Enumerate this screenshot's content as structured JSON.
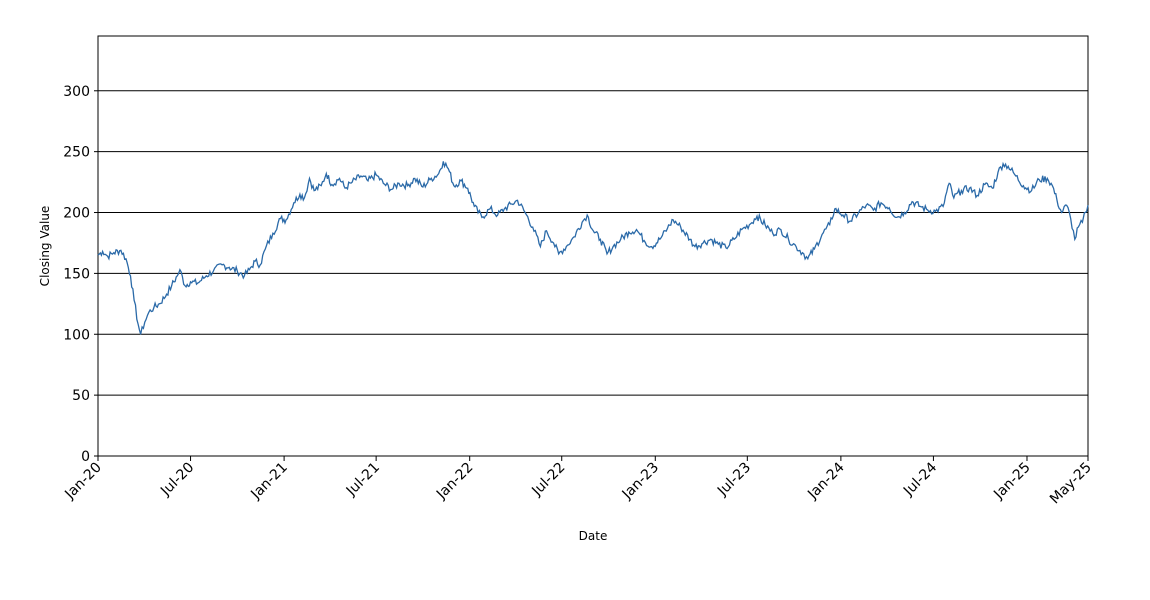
{
  "chart_data": {
    "type": "line",
    "title": "",
    "xlabel": "Date",
    "ylabel": "Closing Value",
    "xlim": [
      "2020-01-01",
      "2025-05-01"
    ],
    "ylim": [
      0,
      345
    ],
    "grid": "horizontal",
    "legend": "none",
    "line_color": "#2b6aa8",
    "y_ticks": [
      0,
      50,
      100,
      150,
      200,
      250,
      300
    ],
    "x_ticks": [
      {
        "date": "2020-01-01",
        "label": "Jan-20"
      },
      {
        "date": "2020-07-01",
        "label": "Jul-20"
      },
      {
        "date": "2021-01-01",
        "label": "Jan-21"
      },
      {
        "date": "2021-07-01",
        "label": "Jul-21"
      },
      {
        "date": "2022-01-01",
        "label": "Jan-22"
      },
      {
        "date": "2022-07-01",
        "label": "Jul-22"
      },
      {
        "date": "2023-01-01",
        "label": "Jan-23"
      },
      {
        "date": "2023-07-01",
        "label": "Jul-23"
      },
      {
        "date": "2024-01-01",
        "label": "Jan-24"
      },
      {
        "date": "2024-07-01",
        "label": "Jul-24"
      },
      {
        "date": "2025-01-01",
        "label": "Jan-25"
      },
      {
        "date": "2025-05-01",
        "label": "May-25"
      }
    ],
    "series": [
      {
        "values": [
          [
            "2020-01-01",
            165
          ],
          [
            "2020-01-10",
            168
          ],
          [
            "2020-01-20",
            164
          ],
          [
            "2020-02-01",
            167
          ],
          [
            "2020-02-15",
            169
          ],
          [
            "2020-02-25",
            162
          ],
          [
            "2020-03-05",
            148
          ],
          [
            "2020-03-12",
            128
          ],
          [
            "2020-03-20",
            108
          ],
          [
            "2020-03-25",
            100
          ],
          [
            "2020-04-02",
            110
          ],
          [
            "2020-04-10",
            118
          ],
          [
            "2020-04-20",
            122
          ],
          [
            "2020-05-01",
            125
          ],
          [
            "2020-05-15",
            133
          ],
          [
            "2020-05-25",
            140
          ],
          [
            "2020-06-05",
            148
          ],
          [
            "2020-06-10",
            153
          ],
          [
            "2020-06-20",
            140
          ],
          [
            "2020-07-01",
            143
          ],
          [
            "2020-07-15",
            142
          ],
          [
            "2020-08-01",
            148
          ],
          [
            "2020-08-15",
            152
          ],
          [
            "2020-09-01",
            157
          ],
          [
            "2020-09-15",
            155
          ],
          [
            "2020-10-01",
            152
          ],
          [
            "2020-10-15",
            148
          ],
          [
            "2020-10-25",
            153
          ],
          [
            "2020-11-05",
            160
          ],
          [
            "2020-11-15",
            157
          ],
          [
            "2020-11-25",
            170
          ],
          [
            "2020-12-10",
            183
          ],
          [
            "2020-12-25",
            195
          ],
          [
            "2021-01-05",
            194
          ],
          [
            "2021-01-20",
            208
          ],
          [
            "2021-02-01",
            215
          ],
          [
            "2021-02-10",
            212
          ],
          [
            "2021-02-20",
            228
          ],
          [
            "2021-03-01",
            218
          ],
          [
            "2021-03-15",
            222
          ],
          [
            "2021-03-25",
            232
          ],
          [
            "2021-04-05",
            223
          ],
          [
            "2021-04-20",
            228
          ],
          [
            "2021-05-01",
            220
          ],
          [
            "2021-05-15",
            225
          ],
          [
            "2021-06-01",
            230
          ],
          [
            "2021-06-15",
            226
          ],
          [
            "2021-07-01",
            231
          ],
          [
            "2021-07-15",
            224
          ],
          [
            "2021-08-01",
            219
          ],
          [
            "2021-08-15",
            224
          ],
          [
            "2021-09-01",
            222
          ],
          [
            "2021-09-15",
            228
          ],
          [
            "2021-10-01",
            221
          ],
          [
            "2021-10-15",
            227
          ],
          [
            "2021-11-01",
            232
          ],
          [
            "2021-11-10",
            242
          ],
          [
            "2021-11-20",
            236
          ],
          [
            "2021-12-01",
            222
          ],
          [
            "2021-12-15",
            226
          ],
          [
            "2021-12-28",
            220
          ],
          [
            "2022-01-10",
            205
          ],
          [
            "2022-01-25",
            196
          ],
          [
            "2022-02-10",
            203
          ],
          [
            "2022-02-25",
            198
          ],
          [
            "2022-03-10",
            203
          ],
          [
            "2022-03-25",
            207
          ],
          [
            "2022-04-05",
            210
          ],
          [
            "2022-04-20",
            200
          ],
          [
            "2022-05-05",
            188
          ],
          [
            "2022-05-20",
            172
          ],
          [
            "2022-06-01",
            185
          ],
          [
            "2022-06-15",
            175
          ],
          [
            "2022-06-25",
            166
          ],
          [
            "2022-07-10",
            172
          ],
          [
            "2022-07-25",
            180
          ],
          [
            "2022-08-10",
            192
          ],
          [
            "2022-08-20",
            198
          ],
          [
            "2022-09-01",
            185
          ],
          [
            "2022-09-15",
            178
          ],
          [
            "2022-09-28",
            166
          ],
          [
            "2022-10-10",
            172
          ],
          [
            "2022-10-25",
            178
          ],
          [
            "2022-11-10",
            184
          ],
          [
            "2022-11-25",
            186
          ],
          [
            "2022-12-10",
            177
          ],
          [
            "2022-12-25",
            172
          ],
          [
            "2023-01-10",
            178
          ],
          [
            "2023-01-25",
            187
          ],
          [
            "2023-02-05",
            194
          ],
          [
            "2023-02-20",
            188
          ],
          [
            "2023-03-10",
            178
          ],
          [
            "2023-03-20",
            172
          ],
          [
            "2023-04-05",
            175
          ],
          [
            "2023-04-20",
            178
          ],
          [
            "2023-05-05",
            174
          ],
          [
            "2023-05-20",
            171
          ],
          [
            "2023-06-05",
            178
          ],
          [
            "2023-06-20",
            186
          ],
          [
            "2023-07-05",
            190
          ],
          [
            "2023-07-20",
            197
          ],
          [
            "2023-08-05",
            190
          ],
          [
            "2023-08-20",
            183
          ],
          [
            "2023-09-05",
            186
          ],
          [
            "2023-09-20",
            178
          ],
          [
            "2023-10-05",
            172
          ],
          [
            "2023-10-20",
            166
          ],
          [
            "2023-10-28",
            162
          ],
          [
            "2023-11-10",
            170
          ],
          [
            "2023-11-25",
            182
          ],
          [
            "2023-12-10",
            190
          ],
          [
            "2023-12-20",
            203
          ],
          [
            "2024-01-05",
            198
          ],
          [
            "2024-01-20",
            193
          ],
          [
            "2024-02-05",
            200
          ],
          [
            "2024-02-20",
            206
          ],
          [
            "2024-03-05",
            202
          ],
          [
            "2024-03-20",
            208
          ],
          [
            "2024-04-05",
            204
          ],
          [
            "2024-04-20",
            196
          ],
          [
            "2024-05-05",
            200
          ],
          [
            "2024-05-20",
            209
          ],
          [
            "2024-06-05",
            205
          ],
          [
            "2024-06-20",
            202
          ],
          [
            "2024-07-05",
            201
          ],
          [
            "2024-07-20",
            205
          ],
          [
            "2024-08-01",
            224
          ],
          [
            "2024-08-10",
            212
          ],
          [
            "2024-08-25",
            218
          ],
          [
            "2024-09-10",
            220
          ],
          [
            "2024-09-25",
            214
          ],
          [
            "2024-10-10",
            223
          ],
          [
            "2024-10-25",
            220
          ],
          [
            "2024-11-05",
            233
          ],
          [
            "2024-11-15",
            240
          ],
          [
            "2024-11-25",
            238
          ],
          [
            "2024-12-10",
            230
          ],
          [
            "2024-12-25",
            222
          ],
          [
            "2025-01-10",
            218
          ],
          [
            "2025-01-25",
            227
          ],
          [
            "2025-02-10",
            228
          ],
          [
            "2025-02-20",
            222
          ],
          [
            "2025-03-01",
            210
          ],
          [
            "2025-03-10",
            200
          ],
          [
            "2025-03-20",
            206
          ],
          [
            "2025-03-28",
            195
          ],
          [
            "2025-04-05",
            178
          ],
          [
            "2025-04-12",
            188
          ],
          [
            "2025-04-20",
            192
          ],
          [
            "2025-04-26",
            200
          ],
          [
            "2025-05-01",
            206
          ]
        ]
      }
    ]
  }
}
